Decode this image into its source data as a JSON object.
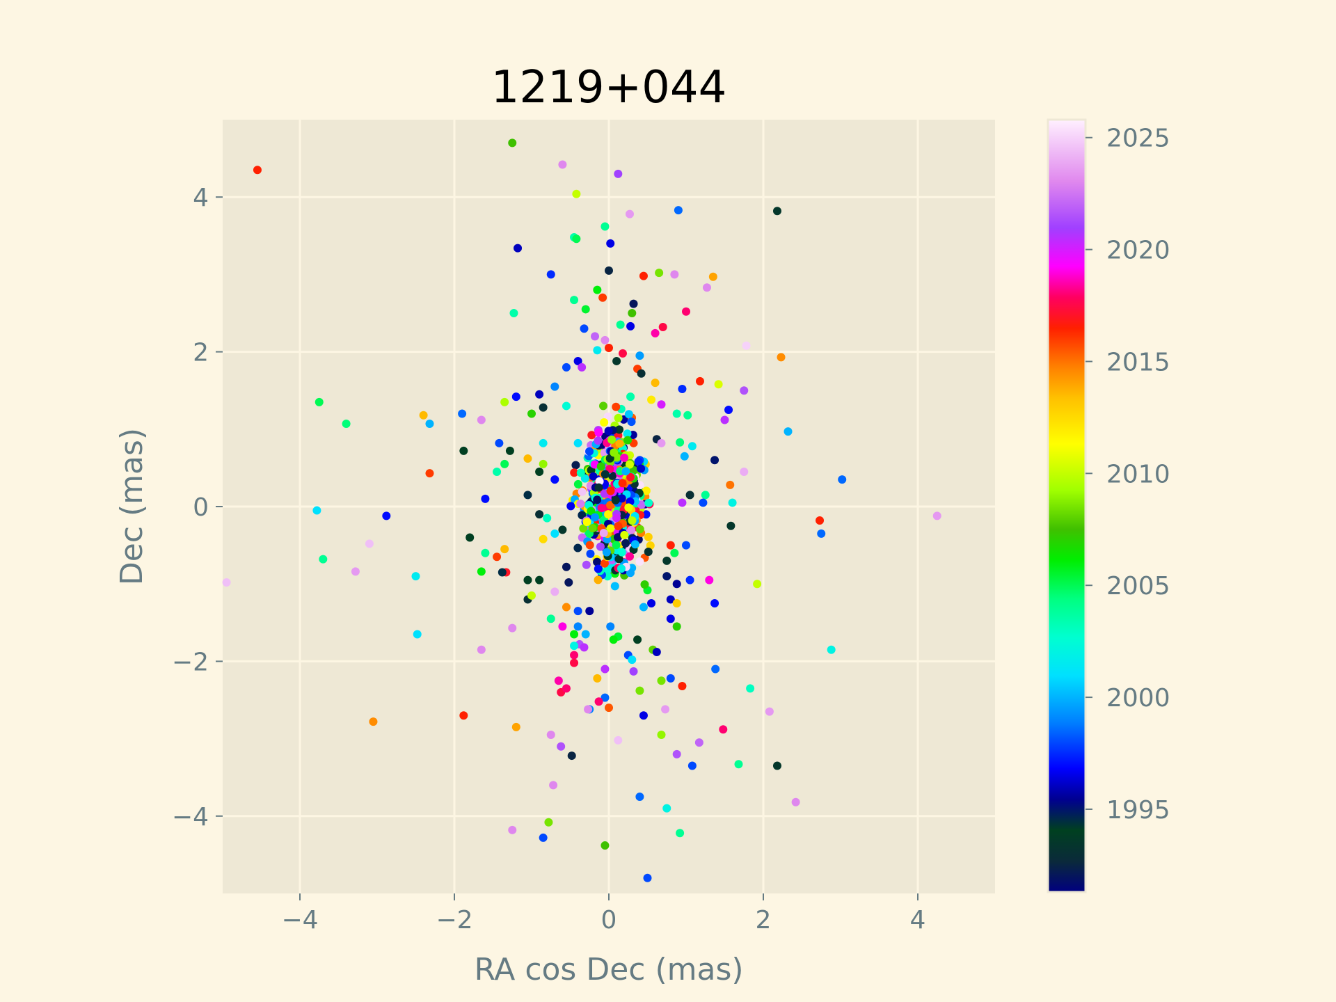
{
  "chart_data": {
    "type": "scatter",
    "title": "1219+044",
    "xlabel": "RA cos Dec (mas)",
    "ylabel": "Dec (mas)",
    "xlim": [
      -5,
      5
    ],
    "ylim": [
      -5,
      5
    ],
    "xticks": [
      -4,
      -2,
      0,
      2,
      4
    ],
    "yticks": [
      -4,
      -2,
      0,
      2,
      4
    ],
    "grid": true,
    "colorbar": {
      "label": "",
      "range": [
        1991.3,
        2025.8
      ],
      "ticks": [
        1995,
        2000,
        2005,
        2010,
        2015,
        2020,
        2025
      ],
      "colormap": "gist_ncar-like"
    },
    "colors": {
      "page_background": "#fdf6e3",
      "plot_background": "#eee8d5",
      "grid": "#fdf6e3",
      "axis_text": "#657b83",
      "title_text": "#000000"
    },
    "points": [
      [
        -4.55,
        4.35,
        2016.5
      ],
      [
        -1.25,
        4.7,
        2007.5
      ],
      [
        -0.6,
        4.42,
        2023.0
      ],
      [
        0.12,
        4.3,
        2021.0
      ],
      [
        -0.42,
        4.04,
        2010.0
      ],
      [
        2.18,
        3.82,
        1993.5
      ],
      [
        0.9,
        3.83,
        1998.5
      ],
      [
        0.27,
        3.78,
        2023.5
      ],
      [
        -0.05,
        3.62,
        2004.0
      ],
      [
        -0.45,
        3.48,
        2003.5
      ],
      [
        -0.42,
        3.46,
        2005.0
      ],
      [
        0.02,
        3.4,
        1996.5
      ],
      [
        -1.18,
        3.34,
        1996.0
      ],
      [
        0.0,
        3.05,
        1992.5
      ],
      [
        -0.75,
        3.0,
        1997.5
      ],
      [
        0.45,
        2.98,
        2016.5
      ],
      [
        0.65,
        3.02,
        2008.5
      ],
      [
        0.85,
        3.0,
        2023.0
      ],
      [
        1.35,
        2.97,
        2014.0
      ],
      [
        1.27,
        2.83,
        2023.0
      ],
      [
        -0.15,
        2.8,
        2006.0
      ],
      [
        -0.08,
        2.7,
        2016.0
      ],
      [
        -0.45,
        2.67,
        2004.0
      ],
      [
        0.32,
        2.62,
        1992.0
      ],
      [
        -0.3,
        2.55,
        2005.5
      ],
      [
        0.3,
        2.5,
        2007.5
      ],
      [
        1.0,
        2.52,
        2018.0
      ],
      [
        -1.23,
        2.5,
        2003.5
      ],
      [
        0.15,
        2.35,
        2004.0
      ],
      [
        0.28,
        2.33,
        1996.5
      ],
      [
        0.7,
        2.32,
        2017.5
      ],
      [
        0.6,
        2.24,
        2018.5
      ],
      [
        -0.32,
        2.3,
        1998.0
      ],
      [
        -0.18,
        2.2,
        2022.0
      ],
      [
        -0.05,
        2.15,
        2023.0
      ],
      [
        1.78,
        2.08,
        2025.0
      ],
      [
        2.23,
        1.93,
        2014.5
      ],
      [
        -0.15,
        2.02,
        2001.5
      ],
      [
        0.0,
        2.05,
        2016.5
      ],
      [
        0.18,
        1.98,
        2017.5
      ],
      [
        0.4,
        1.95,
        1999.5
      ],
      [
        -0.4,
        1.88,
        1996.5
      ],
      [
        -0.55,
        1.8,
        1998.0
      ],
      [
        -0.35,
        1.8,
        2020.5
      ],
      [
        0.1,
        1.88,
        1993.5
      ],
      [
        0.37,
        1.78,
        2016.0
      ],
      [
        0.42,
        1.72,
        1993.0
      ],
      [
        1.18,
        1.62,
        2016.5
      ],
      [
        1.42,
        1.58,
        2010.5
      ],
      [
        0.6,
        1.6,
        2013.5
      ],
      [
        0.95,
        1.52,
        1997.5
      ],
      [
        1.75,
        1.5,
        2021.5
      ],
      [
        -0.7,
        1.55,
        1999.0
      ],
      [
        -0.9,
        1.45,
        1996.0
      ],
      [
        -1.2,
        1.42,
        1997.0
      ],
      [
        0.28,
        1.42,
        2003.5
      ],
      [
        0.55,
        1.38,
        2012.0
      ],
      [
        0.68,
        1.32,
        2020.0
      ],
      [
        1.55,
        1.25,
        1997.0
      ],
      [
        1.5,
        1.12,
        2020.5
      ],
      [
        0.88,
        1.2,
        2003.5
      ],
      [
        1.02,
        1.18,
        2004.0
      ],
      [
        -1.9,
        1.2,
        1998.5
      ],
      [
        -2.4,
        1.18,
        2013.5
      ],
      [
        -2.32,
        1.07,
        2000.0
      ],
      [
        -1.65,
        1.12,
        2023.0
      ],
      [
        -1.35,
        1.35,
        2009.5
      ],
      [
        -3.75,
        1.35,
        2005.0
      ],
      [
        -3.4,
        1.07,
        2004.5
      ],
      [
        -1.0,
        1.2,
        2007.0
      ],
      [
        -0.85,
        1.28,
        1993.0
      ],
      [
        -0.55,
        1.3,
        2002.5
      ],
      [
        2.32,
        0.97,
        2000.0
      ],
      [
        1.08,
        0.78,
        2001.5
      ],
      [
        0.92,
        0.83,
        2004.5
      ],
      [
        0.62,
        0.87,
        1992.5
      ],
      [
        0.68,
        0.82,
        2023.5
      ],
      [
        0.32,
        0.82,
        2016.0
      ],
      [
        -0.4,
        0.82,
        2001.0
      ],
      [
        -0.85,
        0.82,
        2001.5
      ],
      [
        -1.42,
        0.82,
        1998.0
      ],
      [
        -1.28,
        0.72,
        1994.0
      ],
      [
        -1.88,
        0.72,
        1994.0
      ],
      [
        -1.35,
        0.55,
        2005.0
      ],
      [
        -1.45,
        0.45,
        2003.5
      ],
      [
        -2.32,
        0.43,
        2016.0
      ],
      [
        -1.05,
        0.62,
        2013.5
      ],
      [
        -0.85,
        0.55,
        2009.0
      ],
      [
        -0.9,
        0.45,
        1994.0
      ],
      [
        -0.7,
        0.35,
        1997.0
      ],
      [
        0.98,
        0.65,
        2000.0
      ],
      [
        1.37,
        0.6,
        1995.0
      ],
      [
        1.75,
        0.45,
        2024.0
      ],
      [
        3.02,
        0.35,
        1998.5
      ],
      [
        1.57,
        0.28,
        2015.0
      ],
      [
        1.25,
        0.15,
        2004.0
      ],
      [
        1.05,
        0.15,
        1993.0
      ],
      [
        1.22,
        0.05,
        1998.0
      ],
      [
        1.6,
        0.05,
        2002.0
      ],
      [
        0.95,
        0.05,
        2020.5
      ],
      [
        -1.6,
        0.1,
        1997.0
      ],
      [
        -1.05,
        0.15,
        1994.5
      ],
      [
        -0.9,
        -0.1,
        1993.0
      ],
      [
        -0.8,
        -0.15,
        2003.0
      ],
      [
        2.73,
        -0.18,
        2016.5
      ],
      [
        4.25,
        -0.12,
        2023.5
      ],
      [
        1.58,
        -0.25,
        1993.5
      ],
      [
        2.75,
        -0.35,
        1998.5
      ],
      [
        -2.88,
        -0.12,
        1997.0
      ],
      [
        -3.78,
        -0.05,
        2001.0
      ],
      [
        -3.1,
        -0.48,
        2024.5
      ],
      [
        -1.8,
        -0.4,
        1994.0
      ],
      [
        -0.85,
        -0.42,
        2012.5
      ],
      [
        -0.7,
        -0.35,
        2001.0
      ],
      [
        -0.6,
        -0.3,
        1993.5
      ],
      [
        1.0,
        -0.5,
        1998.0
      ],
      [
        0.8,
        -0.5,
        2016.5
      ],
      [
        -1.35,
        -0.55,
        2013.5
      ],
      [
        -1.6,
        -0.6,
        2004.0
      ],
      [
        -1.45,
        -0.65,
        2016.0
      ],
      [
        -3.7,
        -0.68,
        2004.0
      ],
      [
        -4.95,
        -0.98,
        2024.5
      ],
      [
        -3.28,
        -0.84,
        2023.5
      ],
      [
        -2.5,
        -0.9,
        2001.5
      ],
      [
        -1.65,
        -0.84,
        2006.0
      ],
      [
        -1.33,
        -0.85,
        2017.0
      ],
      [
        -1.38,
        -0.85,
        1994.5
      ],
      [
        -1.05,
        -0.95,
        1994.0
      ],
      [
        -0.9,
        -0.95,
        1994.0
      ],
      [
        -0.55,
        -0.78,
        1992.0
      ],
      [
        0.85,
        -0.6,
        2005.0
      ],
      [
        0.75,
        -0.7,
        1993.5
      ],
      [
        0.75,
        -0.9,
        1995.0
      ],
      [
        0.88,
        -1.0,
        1995.5
      ],
      [
        1.05,
        -0.95,
        1997.5
      ],
      [
        1.3,
        -0.95,
        2019.0
      ],
      [
        1.92,
        -1.0,
        2010.0
      ],
      [
        -1.05,
        -1.2,
        1993.0
      ],
      [
        -1.0,
        -1.15,
        2010.0
      ],
      [
        -0.7,
        -1.1,
        2024.0
      ],
      [
        -0.52,
        -0.98,
        1992.0
      ],
      [
        -0.55,
        -1.3,
        2014.5
      ],
      [
        -0.4,
        -1.35,
        1998.0
      ],
      [
        -0.25,
        -1.35,
        1995.5
      ],
      [
        0.45,
        -1.3,
        2000.0
      ],
      [
        0.5,
        -1.08,
        2005.5
      ],
      [
        0.55,
        -1.25,
        1996.5
      ],
      [
        0.8,
        -1.2,
        1996.0
      ],
      [
        0.88,
        -1.25,
        2013.0
      ],
      [
        0.8,
        -1.45,
        1996.5
      ],
      [
        1.37,
        -1.25,
        1997.0
      ],
      [
        0.88,
        -1.55,
        2007.0
      ],
      [
        -0.75,
        -1.45,
        2004.0
      ],
      [
        -0.6,
        -1.55,
        2019.0
      ],
      [
        -0.4,
        -1.55,
        1999.0
      ],
      [
        -0.3,
        -1.65,
        2000.0
      ],
      [
        -0.45,
        -1.65,
        2006.0
      ],
      [
        0.02,
        -1.55,
        1999.0
      ],
      [
        0.12,
        -1.68,
        2005.5
      ],
      [
        0.06,
        -1.72,
        2006.0
      ],
      [
        -0.38,
        -1.78,
        2021.5
      ],
      [
        -0.45,
        -1.8,
        2002.0
      ],
      [
        -0.45,
        -1.92,
        2018.0
      ],
      [
        -0.32,
        -1.82,
        2020.5
      ],
      [
        0.37,
        -1.72,
        1994.0
      ],
      [
        0.57,
        -1.85,
        2008.0
      ],
      [
        0.62,
        -1.88,
        1996.0
      ],
      [
        0.25,
        -1.92,
        1998.0
      ],
      [
        0.3,
        -1.98,
        2001.0
      ],
      [
        -1.65,
        -1.85,
        2023.0
      ],
      [
        -1.25,
        -1.57,
        2023.0
      ],
      [
        -2.48,
        -1.65,
        2001.0
      ],
      [
        -0.45,
        -2.02,
        2017.5
      ],
      [
        -0.05,
        -2.1,
        2020.5
      ],
      [
        0.32,
        -2.13,
        2021.0
      ],
      [
        1.38,
        -2.1,
        1998.5
      ],
      [
        2.88,
        -1.85,
        2002.0
      ],
      [
        -0.65,
        -2.25,
        2018.5
      ],
      [
        -0.15,
        -2.22,
        2013.5
      ],
      [
        0.68,
        -2.25,
        2008.5
      ],
      [
        0.8,
        -2.22,
        1998.0
      ],
      [
        0.95,
        -2.32,
        2016.5
      ],
      [
        1.83,
        -2.35,
        2003.0
      ],
      [
        -0.62,
        -2.4,
        2017.5
      ],
      [
        -0.55,
        -2.35,
        2018.0
      ],
      [
        0.4,
        -2.38,
        2008.5
      ],
      [
        -0.05,
        -2.47,
        1998.5
      ],
      [
        -0.13,
        -2.52,
        2018.0
      ],
      [
        -0.25,
        -2.62,
        1999.0
      ],
      [
        -0.27,
        -2.62,
        2023.0
      ],
      [
        0.0,
        -2.6,
        2015.5
      ],
      [
        0.73,
        -2.62,
        2023.5
      ],
      [
        0.45,
        -2.7,
        1996.5
      ],
      [
        2.08,
        -2.65,
        2023.5
      ],
      [
        -1.88,
        -2.7,
        2016.5
      ],
      [
        -3.05,
        -2.78,
        2014.5
      ],
      [
        -1.2,
        -2.85,
        2014.0
      ],
      [
        1.48,
        -2.88,
        2018.0
      ],
      [
        -0.75,
        -2.95,
        2023.0
      ],
      [
        0.12,
        -3.02,
        2024.5
      ],
      [
        0.68,
        -2.95,
        2009.0
      ],
      [
        1.17,
        -3.05,
        2022.0
      ],
      [
        -0.62,
        -3.1,
        2021.5
      ],
      [
        0.88,
        -3.2,
        2021.5
      ],
      [
        -0.48,
        -3.22,
        1992.5
      ],
      [
        1.08,
        -3.35,
        1998.0
      ],
      [
        1.68,
        -3.33,
        2004.0
      ],
      [
        2.18,
        -3.35,
        1993.5
      ],
      [
        -0.72,
        -3.6,
        2023.0
      ],
      [
        0.4,
        -3.75,
        1998.5
      ],
      [
        2.42,
        -3.82,
        2023.0
      ],
      [
        0.75,
        -3.9,
        2002.0
      ],
      [
        -0.78,
        -4.08,
        2008.5
      ],
      [
        -1.25,
        -4.18,
        2023.0
      ],
      [
        0.92,
        -4.22,
        2004.0
      ],
      [
        -0.85,
        -4.28,
        1998.0
      ],
      [
        -0.05,
        -4.38,
        2007.5
      ],
      [
        0.5,
        -4.8,
        1998.0
      ]
    ],
    "cluster_note_visible": ""
  }
}
